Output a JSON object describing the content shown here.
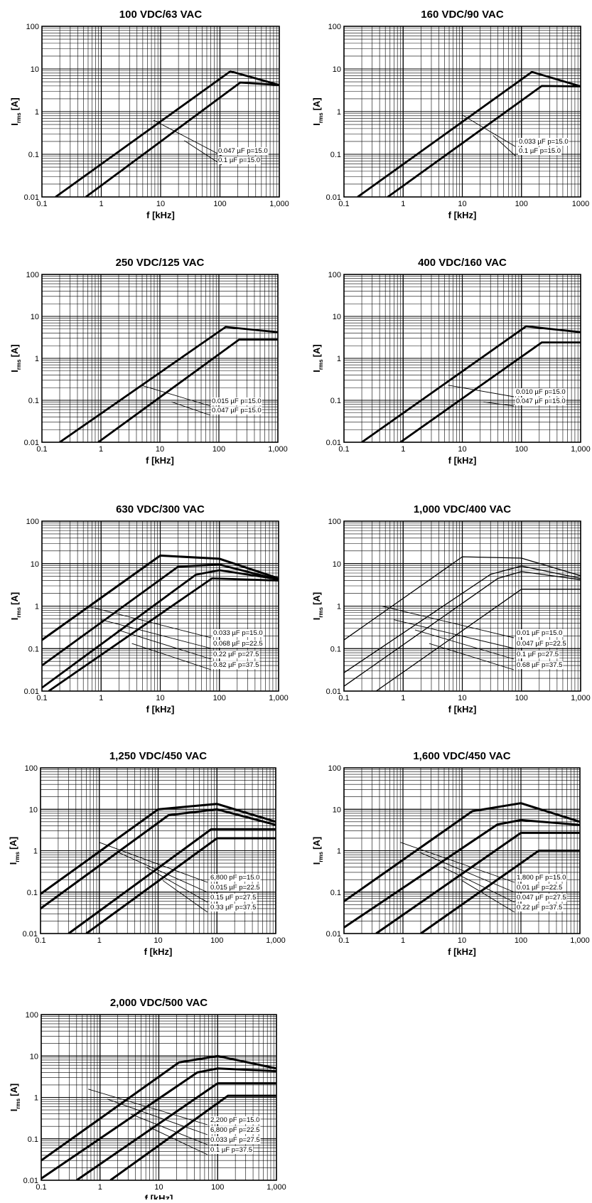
{
  "common": {
    "xlabel": "f [kHz]",
    "ylabel_main": "I",
    "ylabel_sub": "rms",
    "ylabel_unit": "[A]"
  },
  "chart_data": [
    {
      "type": "line",
      "title": "100 VDC/63 VAC",
      "x_scale": "log",
      "y_scale": "log",
      "xlim": [
        0.1,
        1000
      ],
      "ylim": [
        0.01,
        100
      ],
      "grid": true,
      "x_ticks": [
        "0.1",
        "1",
        "10",
        "100",
        "1,000"
      ],
      "y_ticks": [
        "0.01",
        "0.1",
        "1",
        "10",
        "100"
      ],
      "series": [
        {
          "name": "0.047 µF  p=15.0",
          "points": [
            [
              0.17,
              0.01
            ],
            [
              150,
              8.8
            ],
            [
              1000,
              4.2
            ]
          ]
        },
        {
          "name": "0.1 µF  p=15.0",
          "points": [
            [
              0.55,
              0.01
            ],
            [
              220,
              4.8
            ],
            [
              1000,
              4.2
            ]
          ]
        }
      ]
    },
    {
      "type": "line",
      "title": "160 VDC/90 VAC",
      "x_scale": "log",
      "y_scale": "log",
      "xlim": [
        0.1,
        1000
      ],
      "ylim": [
        0.01,
        100
      ],
      "grid": true,
      "x_ticks": [
        "0.1",
        "1",
        "10",
        "100",
        "1000"
      ],
      "y_ticks": [
        "0.01",
        "0.1",
        "1",
        "10",
        "100"
      ],
      "series": [
        {
          "name": "0.033 µF  p=15.0",
          "points": [
            [
              0.17,
              0.01
            ],
            [
              150,
              8.5
            ],
            [
              1000,
              3.9
            ]
          ]
        },
        {
          "name": "0.1 µF  p=15.0",
          "points": [
            [
              0.55,
              0.01
            ],
            [
              220,
              4.0
            ],
            [
              1000,
              3.9
            ]
          ]
        }
      ]
    },
    {
      "type": "line",
      "title": "250 VDC/125 VAC",
      "x_scale": "log",
      "y_scale": "log",
      "xlim": [
        0.1,
        1000
      ],
      "ylim": [
        0.01,
        100
      ],
      "grid": true,
      "x_ticks": [
        "0.1",
        "1",
        "10",
        "100",
        "1,000"
      ],
      "y_ticks": [
        "0.01",
        "0.1",
        "1",
        "10",
        "100"
      ],
      "series": [
        {
          "name": "0.015 µF  p=15.0",
          "points": [
            [
              0.2,
              0.01
            ],
            [
              130,
              5.6
            ],
            [
              1000,
              4.2
            ]
          ]
        },
        {
          "name": "0.047 µF  p=15.0",
          "points": [
            [
              0.9,
              0.01
            ],
            [
              220,
              2.8
            ],
            [
              1000,
              2.8
            ]
          ]
        }
      ]
    },
    {
      "type": "line",
      "title": "400 VDC/160 VAC",
      "x_scale": "log",
      "y_scale": "log",
      "xlim": [
        0.1,
        1000
      ],
      "ylim": [
        0.01,
        100
      ],
      "grid": true,
      "x_ticks": [
        "0.1",
        "1",
        "10",
        "100",
        "1,000"
      ],
      "y_ticks": [
        "0.01",
        "0.1",
        "1",
        "10",
        "100"
      ],
      "series": [
        {
          "name": "0.010 µF  p=15.0",
          "points": [
            [
              0.2,
              0.01
            ],
            [
              120,
              5.8
            ],
            [
              1000,
              4.2
            ]
          ]
        },
        {
          "name": "0.047 µF  p=15.0",
          "points": [
            [
              0.9,
              0.01
            ],
            [
              220,
              2.4
            ],
            [
              1000,
              2.4
            ]
          ]
        }
      ]
    },
    {
      "type": "line",
      "title": "630 VDC/300 VAC",
      "x_scale": "log",
      "y_scale": "log",
      "xlim": [
        0.1,
        1000
      ],
      "ylim": [
        0.01,
        100
      ],
      "grid": true,
      "x_ticks": [
        "0.1",
        "1",
        "10",
        "100",
        "1,000"
      ],
      "y_ticks": [
        "0.01",
        "0.1",
        "1",
        "10",
        "100"
      ],
      "series": [
        {
          "name": "0.033 µF  p=15.0",
          "points": [
            [
              0.1,
              0.16
            ],
            [
              10,
              15.5
            ],
            [
              100,
              13
            ],
            [
              1000,
              4.5
            ]
          ]
        },
        {
          "name": "0.068 µF  p=22.5",
          "points": [
            [
              0.1,
              0.04
            ],
            [
              20,
              8.5
            ],
            [
              100,
              9.5
            ],
            [
              1000,
              4.2
            ]
          ]
        },
        {
          "name": "0.22 µF  p=27.5",
          "points": [
            [
              0.1,
              0.012
            ],
            [
              40,
              5.5
            ],
            [
              100,
              7.0
            ],
            [
              1000,
              4.3
            ]
          ]
        },
        {
          "name": "0.82 µF  p=37.5",
          "points": [
            [
              0.13,
              0.01
            ],
            [
              75,
              4.5
            ],
            [
              1000,
              4.0
            ]
          ]
        }
      ]
    },
    {
      "type": "line",
      "title": "1,000 VDC/400 VAC",
      "x_scale": "log",
      "y_scale": "log",
      "xlim": [
        0.1,
        1000
      ],
      "ylim": [
        0.01,
        100
      ],
      "grid": true,
      "x_ticks": [
        "0.1",
        "1",
        "10",
        "100",
        "1,000"
      ],
      "y_ticks": [
        "0.01",
        "0.1",
        "1",
        "10",
        "100"
      ],
      "series": [
        {
          "name": "0.01 µF  p=15.0",
          "points": [
            [
              0.1,
              0.16
            ],
            [
              10,
              14.5
            ],
            [
              100,
              13.5
            ],
            [
              1000,
              5.2
            ]
          ]
        },
        {
          "name": "0.047 µF  p=22.5",
          "points": [
            [
              0.1,
              0.027
            ],
            [
              30,
              5.6
            ],
            [
              100,
              8.8
            ],
            [
              1000,
              4.5
            ]
          ]
        },
        {
          "name": "0.1 µF  p=27.5",
          "points": [
            [
              0.1,
              0.013
            ],
            [
              40,
              4.5
            ],
            [
              100,
              6.5
            ],
            [
              1000,
              4.2
            ]
          ]
        },
        {
          "name": "0.68 µF  p=37.5",
          "points": [
            [
              0.35,
              0.01
            ],
            [
              100,
              2.5
            ],
            [
              1000,
              2.5
            ]
          ]
        }
      ]
    },
    {
      "type": "line",
      "title": "1,250 VDC/450 VAC",
      "x_scale": "log",
      "y_scale": "log",
      "xlim": [
        0.1,
        1000
      ],
      "ylim": [
        0.01,
        100
      ],
      "grid": true,
      "x_ticks": [
        "0.1",
        "1",
        "10",
        "100",
        "1,000"
      ],
      "y_ticks": [
        "0.01",
        "0.1",
        "1",
        "10",
        "100"
      ],
      "series": [
        {
          "name": "6,800 pF  p=15.0",
          "points": [
            [
              0.1,
              0.09
            ],
            [
              10,
              10
            ],
            [
              100,
              13.5
            ],
            [
              1000,
              5.0
            ]
          ]
        },
        {
          "name": "0.015 µF  p=22.5",
          "points": [
            [
              0.1,
              0.04
            ],
            [
              15,
              7.2
            ],
            [
              100,
              10
            ],
            [
              1000,
              4.2
            ]
          ]
        },
        {
          "name": "0.15 µF  p=27.5",
          "points": [
            [
              0.3,
              0.01
            ],
            [
              80,
              3.3
            ],
            [
              1000,
              3.3
            ]
          ]
        },
        {
          "name": "0.33 µF  p=37.5",
          "points": [
            [
              0.6,
              0.01
            ],
            [
              100,
              2.0
            ],
            [
              1000,
              2.0
            ]
          ]
        }
      ]
    },
    {
      "type": "line",
      "title": "1,600 VDC/450 VAC",
      "x_scale": "log",
      "y_scale": "log",
      "xlim": [
        0.1,
        1000
      ],
      "ylim": [
        0.01,
        100
      ],
      "grid": true,
      "x_ticks": [
        "0.1",
        "1",
        "10",
        "100",
        "1,000"
      ],
      "y_ticks": [
        "0.01",
        "0.1",
        "1",
        "10",
        "100"
      ],
      "series": [
        {
          "name": "1,800 pF  p=15.0",
          "points": [
            [
              0.1,
              0.06
            ],
            [
              15,
              9
            ],
            [
              100,
              14
            ],
            [
              1000,
              5.0
            ]
          ]
        },
        {
          "name": "0.01 µF  p=22.5",
          "points": [
            [
              0.1,
              0.014
            ],
            [
              40,
              4.3
            ],
            [
              100,
              5.5
            ],
            [
              1000,
              4.2
            ]
          ]
        },
        {
          "name": "0.047 µF  p=27.5",
          "points": [
            [
              0.35,
              0.01
            ],
            [
              100,
              2.7
            ],
            [
              1000,
              2.7
            ]
          ]
        },
        {
          "name": "0.22 µF  p=37.5",
          "points": [
            [
              2.0,
              0.01
            ],
            [
              200,
              1.0
            ],
            [
              1000,
              1.0
            ]
          ]
        }
      ]
    },
    {
      "type": "line",
      "title": "2,000 VDC/500 VAC",
      "x_scale": "log",
      "y_scale": "log",
      "xlim": [
        0.1,
        1000
      ],
      "ylim": [
        0.01,
        100
      ],
      "grid": true,
      "x_ticks": [
        "0.1",
        "1",
        "10",
        "100",
        "1,000"
      ],
      "y_ticks": [
        "0.01",
        "0.1",
        "1",
        "10",
        "100"
      ],
      "series": [
        {
          "name": "2,200 pF  p=15.0",
          "points": [
            [
              0.1,
              0.03
            ],
            [
              22,
              7
            ],
            [
              100,
              10
            ],
            [
              1000,
              5.0
            ]
          ]
        },
        {
          "name": "6,800 pF  p=22.5",
          "points": [
            [
              0.1,
              0.011
            ],
            [
              45,
              4
            ],
            [
              100,
              5
            ],
            [
              1000,
              4.3
            ]
          ]
        },
        {
          "name": "0.033 µF  p=27.5",
          "points": [
            [
              0.4,
              0.01
            ],
            [
              100,
              2.2
            ],
            [
              1000,
              2.2
            ]
          ]
        },
        {
          "name": "0.1 µF  p=37.5",
          "points": [
            [
              1.5,
              0.01
            ],
            [
              150,
              1.1
            ],
            [
              1000,
              1.1
            ]
          ]
        }
      ]
    }
  ]
}
